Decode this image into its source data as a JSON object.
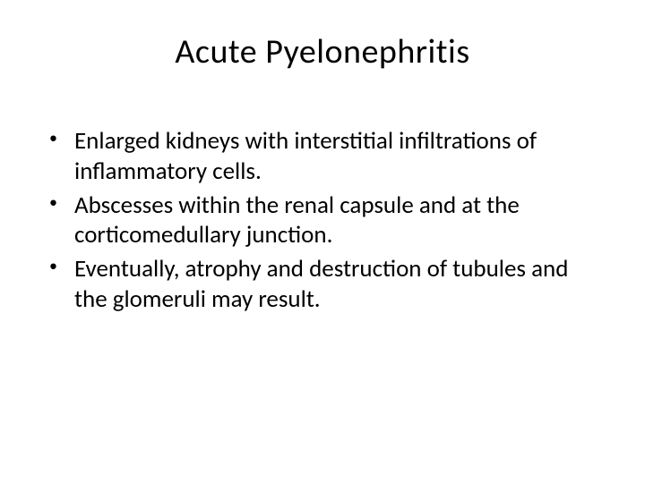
{
  "slide": {
    "title": "Acute Pyelonephritis",
    "bullets": [
      "Enlarged kidneys with interstitial infiltrations of inflammatory cells.",
      "Abscesses within the renal capsule and at the corticomedullary junction.",
      "Eventually, atrophy and destruction of tubules and the glomeruli may result."
    ],
    "bullet_marker": "•",
    "colors": {
      "background": "#ffffff",
      "text": "#000000"
    },
    "typography": {
      "title_fontsize": 38,
      "body_fontsize": 27,
      "font_family": "Calibri"
    }
  }
}
